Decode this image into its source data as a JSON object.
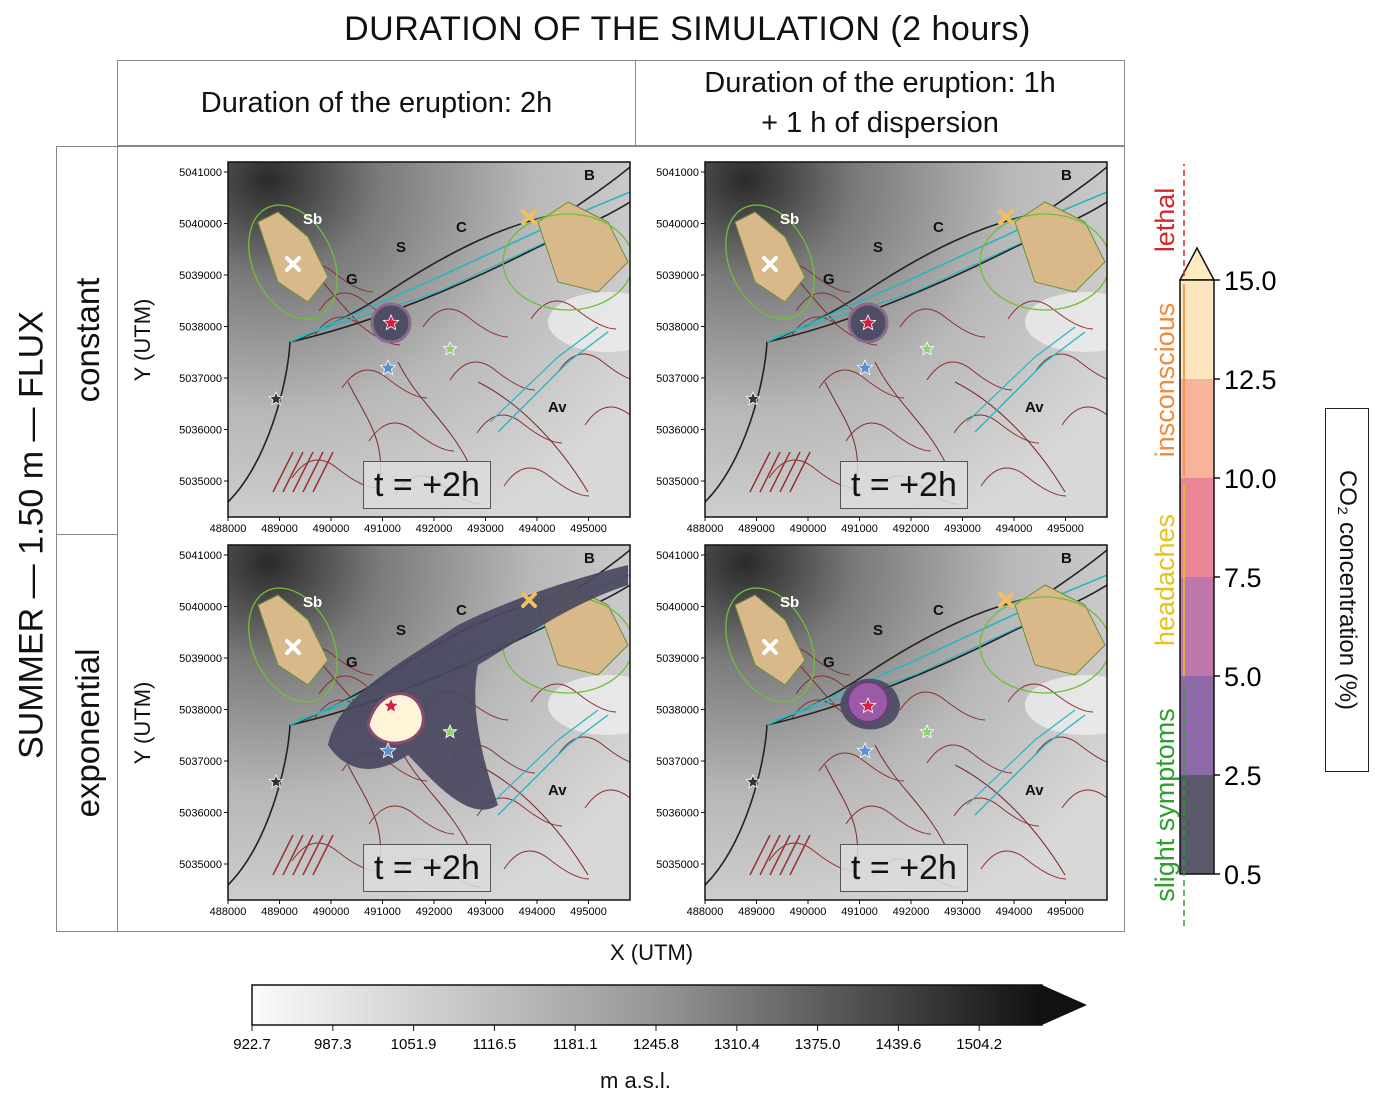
{
  "title": "DURATION OF THE SIMULATION (2 hours)",
  "columns": [
    {
      "line1": "Duration of the eruption: 2h",
      "line2": ""
    },
    {
      "line1": "Duration of the eruption: 1h",
      "line2": "+ 1 h of dispersion"
    }
  ],
  "row_super_label": "SUMMER — 1.50 m — FLUX",
  "rows": [
    "constant",
    "exponential"
  ],
  "axis": {
    "ylabel": "Y (UTM)",
    "xlabel": "X (UTM)",
    "yticks": [
      "5041000",
      "5040000",
      "5039000",
      "5038000",
      "5037000",
      "5036000",
      "5035000"
    ],
    "xticks": [
      "488000",
      "489000",
      "490000",
      "491000",
      "492000",
      "493000",
      "494000",
      "495000"
    ]
  },
  "place_labels": [
    "Sb",
    "S",
    "C",
    "B",
    "G",
    "Av"
  ],
  "panels": [
    {
      "time": "t = +2h",
      "plume": "small",
      "core": "dark"
    },
    {
      "time": "t = +2h",
      "plume": "small",
      "core": "dark"
    },
    {
      "time": "t = +2h",
      "plume": "large",
      "core": "light"
    },
    {
      "time": "t = +2h",
      "plume": "medium",
      "core": "purple"
    }
  ],
  "co2_colorbar": {
    "label": "CO₂ concentration (%)",
    "ticks": [
      "15.0",
      "12.5",
      "10.0",
      "7.5",
      "5.0",
      "2.5",
      "0.5"
    ],
    "colors": [
      "#fce5bf",
      "#f7b49a",
      "#e98798",
      "#bf77ab",
      "#8e6aa8",
      "#5b5a6d"
    ],
    "extend_color": "#fcebbf"
  },
  "effects": [
    {
      "label": "slight symptoms",
      "color": "#2e9e2e"
    },
    {
      "label": "headaches",
      "color": "#e3c41a"
    },
    {
      "label": "insconscious",
      "color": "#f08a3c"
    },
    {
      "label": "lethal",
      "color": "#d62728"
    }
  ],
  "elevation_colorbar": {
    "label": "m a.s.l.",
    "ticks": [
      "922.7",
      "987.3",
      "1051.9",
      "1116.5",
      "1181.1",
      "1245.8",
      "1310.4",
      "1375.0",
      "1439.6",
      "1504.2"
    ]
  }
}
